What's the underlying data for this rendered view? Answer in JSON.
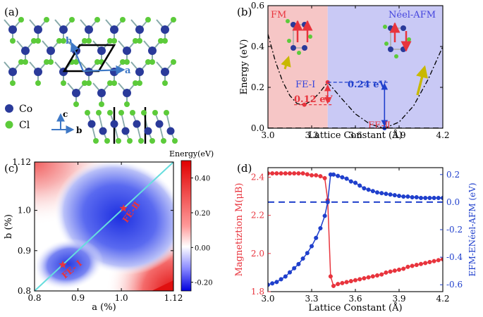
{
  "colors": {
    "fm_shade": "#f6c6c6",
    "afm_shade": "#c9c9f5",
    "red": "#e8343d",
    "blue": "#1f3fcc",
    "co_atom": "#2a3a9a",
    "cl_atom": "#5ccb3a",
    "lattice_line": "#3e78c6",
    "spin_arrow": "#c8b800",
    "diag_line": "#66dddd"
  },
  "panel_a": {
    "label": "(a)",
    "vec_b": "b",
    "vec_a": "a",
    "axis_c": "c",
    "axis_b": "b",
    "legend": [
      {
        "name": "Co",
        "color": "#2a3a9a"
      },
      {
        "name": "Cl",
        "color": "#5ccb3a"
      }
    ]
  },
  "panel_b": {
    "label": "(b)",
    "region_fm": "FM",
    "region_afm": "Néel-AFM",
    "annot_fe1": "FE-Ⅰ",
    "annot_fe2": "FE-Ⅱ",
    "barrier_fe1": "0.12 eV",
    "barrier_fe2": "0.24 eV"
  },
  "panel_c": {
    "label": "(c)",
    "star_fe1": "FE- Ⅰ",
    "star_fe2": "FE-Ⅱ",
    "colorbar_title": "Energy(eV)"
  },
  "panel_d": {
    "label": "(d)"
  },
  "chart_data": [
    {
      "panel": "b",
      "type": "line",
      "xlabel": "Lattice Constant (Å)",
      "ylabel": "Energy (eV)",
      "xlim": [
        3.0,
        4.2
      ],
      "ylim": [
        0.0,
        0.6
      ],
      "xticks": [
        3.0,
        3.3,
        3.6,
        3.9,
        4.2
      ],
      "yticks": [
        0.0,
        0.2,
        0.4,
        0.6
      ],
      "fm_region": [
        3.0,
        3.41
      ],
      "afm_region": [
        3.41,
        4.2
      ],
      "series": [
        {
          "style": "dash-dot",
          "x": [
            3.0,
            3.05,
            3.1,
            3.15,
            3.2,
            3.25,
            3.3,
            3.35,
            3.41
          ],
          "y": [
            0.46,
            0.33,
            0.23,
            0.16,
            0.12,
            0.115,
            0.135,
            0.17,
            0.225
          ]
        },
        {
          "style": "dash-dot",
          "x": [
            3.41,
            3.5,
            3.6,
            3.7,
            3.8,
            3.9,
            4.0,
            4.1,
            4.2
          ],
          "y": [
            0.225,
            0.15,
            0.07,
            0.02,
            0.0,
            0.03,
            0.11,
            0.24,
            0.4
          ]
        },
        {
          "style": "dashed",
          "x": [
            3.0,
            4.2
          ],
          "y": [
            0.0,
            0.0
          ]
        }
      ],
      "markers": [
        {
          "x": 3.25,
          "y": 0.115,
          "color": "#e8343d"
        },
        {
          "x": 3.41,
          "y": 0.225,
          "color": "#e8343d"
        },
        {
          "x": 3.8,
          "y": 0.0,
          "color": "#1f3fcc"
        }
      ]
    },
    {
      "panel": "c",
      "type": "heatmap",
      "xlabel": "a (%)",
      "ylabel": "b (%)",
      "xlim": [
        0.8,
        1.12
      ],
      "ylim": [
        0.8,
        1.12
      ],
      "xticks": [
        0.8,
        0.9,
        1.0,
        1.12
      ],
      "yticks": [
        0.8,
        0.9,
        1.0,
        1.12
      ],
      "colorbar_range": [
        -0.25,
        0.5
      ],
      "colorbar_ticks": [
        0.4,
        0.2,
        0.0,
        -0.2
      ],
      "colorbar_tick_labels": [
        "0.40",
        "0.20",
        "0.00",
        "-0.20"
      ],
      "stars": [
        {
          "x": 0.865,
          "y": 0.865
        },
        {
          "x": 1.005,
          "y": 1.005
        }
      ]
    },
    {
      "panel": "d",
      "type": "line",
      "xlabel": "Lattice Constant (Å)",
      "ylabel_left": "Magnetiztion M(μB)",
      "ylabel_right": "EFM-ENéel-AFM (eV)",
      "xlim": [
        3.0,
        4.2
      ],
      "ylim_left": [
        1.8,
        2.45
      ],
      "ylim_right": [
        -0.65,
        0.25
      ],
      "xticks": [
        3.0,
        3.3,
        3.6,
        3.9,
        4.2
      ],
      "yticks_left": [
        1.8,
        2.0,
        2.2,
        2.4
      ],
      "yticks_right": [
        -0.6,
        -0.4,
        -0.2,
        0.0,
        0.2
      ],
      "series": [
        {
          "axis": "left",
          "color": "#e8343d",
          "x": [
            3.0,
            3.03,
            3.06,
            3.09,
            3.12,
            3.15,
            3.18,
            3.21,
            3.24,
            3.27,
            3.3,
            3.33,
            3.36,
            3.39,
            3.41,
            3.43,
            3.45,
            3.48,
            3.51,
            3.54,
            3.57,
            3.6,
            3.63,
            3.66,
            3.69,
            3.72,
            3.75,
            3.78,
            3.81,
            3.84,
            3.87,
            3.9,
            3.93,
            3.96,
            3.99,
            4.02,
            4.05,
            4.08,
            4.11,
            4.14,
            4.17,
            4.2
          ],
          "y": [
            2.42,
            2.42,
            2.42,
            2.42,
            2.42,
            2.42,
            2.42,
            2.42,
            2.42,
            2.415,
            2.41,
            2.41,
            2.405,
            2.395,
            2.28,
            1.88,
            1.83,
            1.84,
            1.845,
            1.85,
            1.855,
            1.86,
            1.865,
            1.87,
            1.875,
            1.88,
            1.885,
            1.89,
            1.9,
            1.905,
            1.91,
            1.915,
            1.92,
            1.93,
            1.935,
            1.94,
            1.945,
            1.95,
            1.955,
            1.96,
            1.965,
            1.97
          ]
        },
        {
          "axis": "right",
          "color": "#1f3fcc",
          "x": [
            3.0,
            3.03,
            3.06,
            3.09,
            3.12,
            3.15,
            3.18,
            3.21,
            3.24,
            3.27,
            3.3,
            3.33,
            3.36,
            3.39,
            3.41,
            3.43,
            3.45,
            3.48,
            3.51,
            3.54,
            3.57,
            3.6,
            3.63,
            3.66,
            3.69,
            3.72,
            3.75,
            3.78,
            3.81,
            3.84,
            3.87,
            3.9,
            3.93,
            3.96,
            3.99,
            4.02,
            4.05,
            4.08,
            4.11,
            4.14,
            4.17,
            4.2
          ],
          "y": [
            -0.6,
            -0.59,
            -0.58,
            -0.56,
            -0.54,
            -0.51,
            -0.48,
            -0.45,
            -0.41,
            -0.37,
            -0.32,
            -0.26,
            -0.19,
            -0.1,
            0.0,
            0.2,
            0.2,
            0.19,
            0.18,
            0.17,
            0.15,
            0.14,
            0.12,
            0.1,
            0.09,
            0.08,
            0.07,
            0.065,
            0.06,
            0.055,
            0.05,
            0.045,
            0.04,
            0.04,
            0.035,
            0.035,
            0.03,
            0.03,
            0.03,
            0.03,
            0.03,
            0.03
          ]
        },
        {
          "axis": "right",
          "color": "#1f3fcc",
          "style": "dashed",
          "x": [
            3.0,
            4.2
          ],
          "y": [
            0.0,
            0.0
          ]
        }
      ]
    }
  ]
}
